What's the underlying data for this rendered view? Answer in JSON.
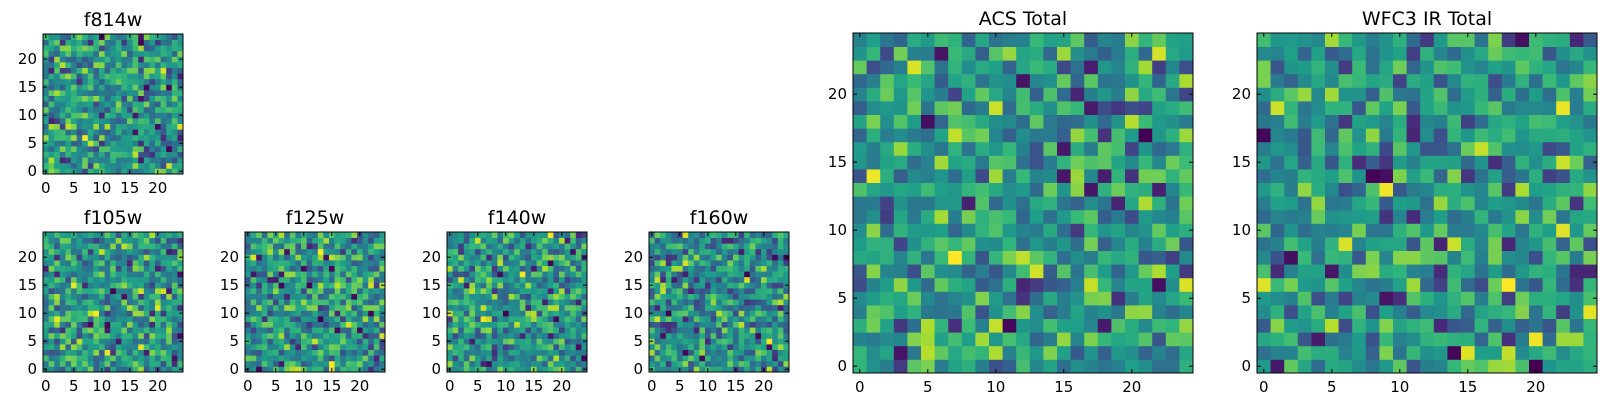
{
  "chart_data": [
    {
      "type": "heatmap",
      "title": "f814w",
      "grid_size": [
        25,
        25
      ],
      "xlim": [
        0,
        24
      ],
      "ylim": [
        0,
        24
      ],
      "xticks": [
        0,
        5,
        10,
        15,
        20
      ],
      "yticks": [
        0,
        5,
        10,
        15,
        20
      ],
      "colormap": "viridis",
      "seed": 11
    },
    {
      "type": "heatmap",
      "title": "f105w",
      "grid_size": [
        25,
        25
      ],
      "xlim": [
        0,
        24
      ],
      "ylim": [
        0,
        24
      ],
      "xticks": [
        0,
        5,
        10,
        15,
        20
      ],
      "yticks": [
        0,
        5,
        10,
        15,
        20
      ],
      "colormap": "viridis",
      "seed": 23
    },
    {
      "type": "heatmap",
      "title": "f125w",
      "grid_size": [
        25,
        25
      ],
      "xlim": [
        0,
        24
      ],
      "ylim": [
        0,
        24
      ],
      "xticks": [
        0,
        5,
        10,
        15,
        20
      ],
      "yticks": [
        0,
        5,
        10,
        15,
        20
      ],
      "colormap": "viridis",
      "seed": 37
    },
    {
      "type": "heatmap",
      "title": "f140w",
      "grid_size": [
        25,
        25
      ],
      "xlim": [
        0,
        24
      ],
      "ylim": [
        0,
        24
      ],
      "xticks": [
        0,
        5,
        10,
        15,
        20
      ],
      "yticks": [
        0,
        5,
        10,
        15,
        20
      ],
      "colormap": "viridis",
      "seed": 41
    },
    {
      "type": "heatmap",
      "title": "f160w",
      "grid_size": [
        25,
        25
      ],
      "xlim": [
        0,
        24
      ],
      "ylim": [
        0,
        24
      ],
      "xticks": [
        0,
        5,
        10,
        15,
        20
      ],
      "yticks": [
        0,
        5,
        10,
        15,
        20
      ],
      "colormap": "viridis",
      "seed": 53
    },
    {
      "type": "heatmap",
      "title": "ACS Total",
      "grid_size": [
        25,
        25
      ],
      "xlim": [
        0,
        24
      ],
      "ylim": [
        0,
        24
      ],
      "xticks": [
        0,
        5,
        10,
        15,
        20
      ],
      "yticks": [
        0,
        5,
        10,
        15,
        20
      ],
      "colormap": "viridis",
      "seed": 67
    },
    {
      "type": "heatmap",
      "title": "WFC3 IR Total",
      "grid_size": [
        25,
        25
      ],
      "xlim": [
        0,
        24
      ],
      "ylim": [
        0,
        24
      ],
      "xticks": [
        0,
        5,
        10,
        15,
        20
      ],
      "yticks": [
        0,
        5,
        10,
        15,
        20
      ],
      "colormap": "viridis",
      "seed": 79
    }
  ]
}
